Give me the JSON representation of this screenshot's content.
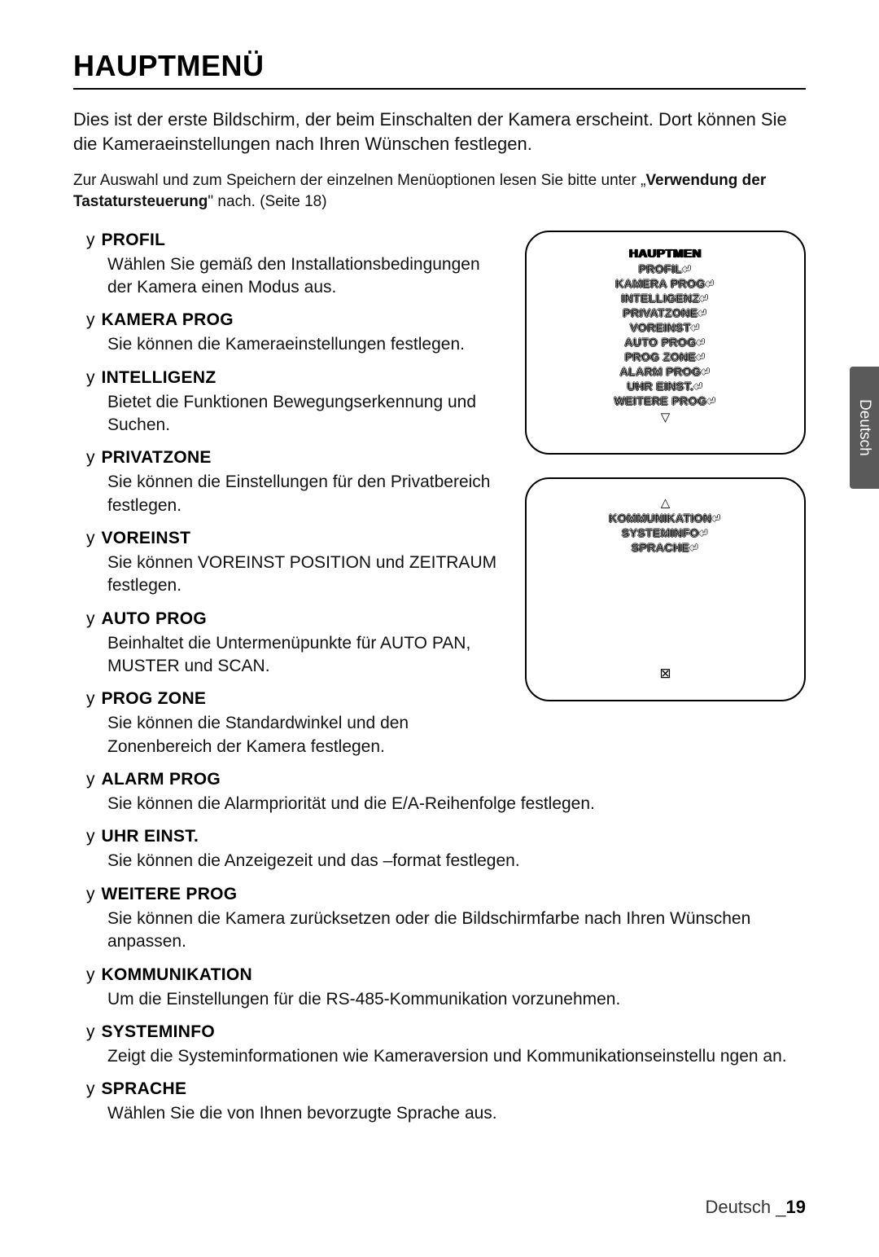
{
  "heading": "HAUPTMENÜ",
  "intro": "Dies ist der erste Bildschirm, der beim Einschalten der Kamera erscheint. Dort können Sie die Kameraeinstellungen nach Ihren Wünschen festlegen.",
  "note_a": "Zur Auswahl und zum Speichern der einzelnen Menüoptionen lesen Sie bitte unter „",
  "note_bold": "Verwendung der Tastatursteuerung",
  "note_b": "\" nach. (Seite 18)",
  "side_tab": "Deutsch",
  "footer_lang": "Deutsch _",
  "footer_page": "19",
  "items_left": [
    {
      "title": "PROFIL",
      "desc": "Wählen Sie gemäß den Installationsbedingungen der Kamera einen Modus aus."
    },
    {
      "title": "KAMERA PROG",
      "desc": "Sie können die Kameraeinstellungen festlegen."
    },
    {
      "title": "INTELLIGENZ",
      "desc": "Bietet die Funktionen Bewegungserkennung und Suchen."
    },
    {
      "title": "PRIVATZONE",
      "desc": "Sie können die Einstellungen für den Privatbereich festlegen."
    },
    {
      "title": "VOREINST",
      "desc": "Sie können VOREINST POSITION und ZEITRAUM festlegen."
    },
    {
      "title": "AUTO PROG",
      "desc": "Beinhaltet die Untermenüpunkte für AUTO PAN, MUSTER und SCAN."
    },
    {
      "title": "PROG ZONE",
      "desc": "Sie können die Standardwinkel und den Zonenbereich der Kamera festlegen."
    }
  ],
  "items_full": [
    {
      "title": "ALARM PROG",
      "desc": "Sie können die Alarmpriorität und die E/A-Reihenfolge festlegen."
    },
    {
      "title": "UHR EINST.",
      "desc": "Sie können die Anzeigezeit und das –format festlegen."
    },
    {
      "title": "WEITERE PROG",
      "desc": "Sie können die Kamera zurücksetzen oder die Bildschirmfarbe nach Ihren Wünschen anpassen."
    },
    {
      "title": "KOMMUNIKATION",
      "desc": "Um die Einstellungen für die RS-485-Kommunikation vorzunehmen."
    },
    {
      "title": "SYSTEMINFO",
      "desc": "Zeigt die Systeminformationen wie Kameraversion und Kommunikationseinstellu ngen an."
    },
    {
      "title": "SPRACHE",
      "desc": "Wählen Sie die von Ihnen bevorzugte Sprache aus."
    }
  ],
  "osd1": {
    "title": "HAUPTMEN",
    "lines": [
      "PROFIL↵",
      "KAMERA PROG↵",
      "INTELLIGENZ↵",
      "PRIVATZONE↵",
      "VOREINST↵",
      "AUTO PROG↵",
      "PROG ZONE↵",
      "ALARM PROG↵",
      "UHR EINST.↵",
      "WEITERE PROG↵"
    ],
    "down": "▽"
  },
  "osd2": {
    "up": "△",
    "lines": [
      "KOMMUNIKATION↵",
      "SYSTEMINFO↵",
      "SPRACHE↵"
    ],
    "exit": "⊠"
  }
}
